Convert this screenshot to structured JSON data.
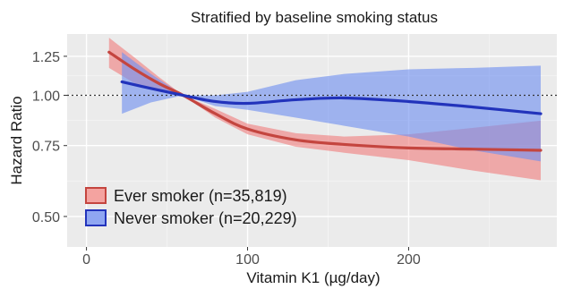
{
  "chart_data": {
    "type": "line",
    "title": "Stratified by baseline smoking status",
    "xlabel": "Vitamin K1 (µg/day)",
    "ylabel": "Hazard Ratio",
    "x_ticks": [
      0,
      100,
      200
    ],
    "y_ticks": [
      0.5,
      0.75,
      1.0,
      1.25
    ],
    "y_tick_labels": [
      "0.50",
      "0.75",
      "1.00",
      "1.25"
    ],
    "xlim": [
      -12,
      292
    ],
    "ylim": [
      0.42,
      1.42
    ],
    "y_scale": "log",
    "reference_line": 1.0,
    "grid": true,
    "legend_position": "bottom-left",
    "series": [
      {
        "name": "Ever smoker (n=35,819)",
        "color": "#c4453f",
        "fill": "#f08080",
        "x": [
          14,
          30,
          45,
          60,
          80,
          100,
          130,
          160,
          200,
          240,
          282
        ],
        "y": [
          1.28,
          1.16,
          1.07,
          1.0,
          0.9,
          0.825,
          0.775,
          0.755,
          0.74,
          0.735,
          0.73
        ],
        "lower": [
          1.17,
          1.07,
          1.02,
          1.0,
          0.88,
          0.8,
          0.745,
          0.72,
          0.69,
          0.65,
          0.615
        ],
        "upper": [
          1.39,
          1.24,
          1.11,
          1.0,
          0.925,
          0.85,
          0.805,
          0.79,
          0.8,
          0.83,
          0.865
        ]
      },
      {
        "name": "Never smoker (n=20,229)",
        "color": "#2233bb",
        "fill": "#6f8ff0",
        "x": [
          22,
          40,
          60,
          80,
          100,
          130,
          160,
          200,
          240,
          282
        ],
        "y": [
          1.08,
          1.04,
          1.0,
          0.965,
          0.955,
          0.975,
          0.985,
          0.965,
          0.935,
          0.9
        ],
        "lower": [
          0.9,
          0.96,
          1.0,
          0.94,
          0.92,
          0.88,
          0.84,
          0.79,
          0.73,
          0.685
        ],
        "upper": [
          1.28,
          1.13,
          1.0,
          1.0,
          1.02,
          1.09,
          1.13,
          1.16,
          1.17,
          1.185
        ]
      }
    ]
  }
}
